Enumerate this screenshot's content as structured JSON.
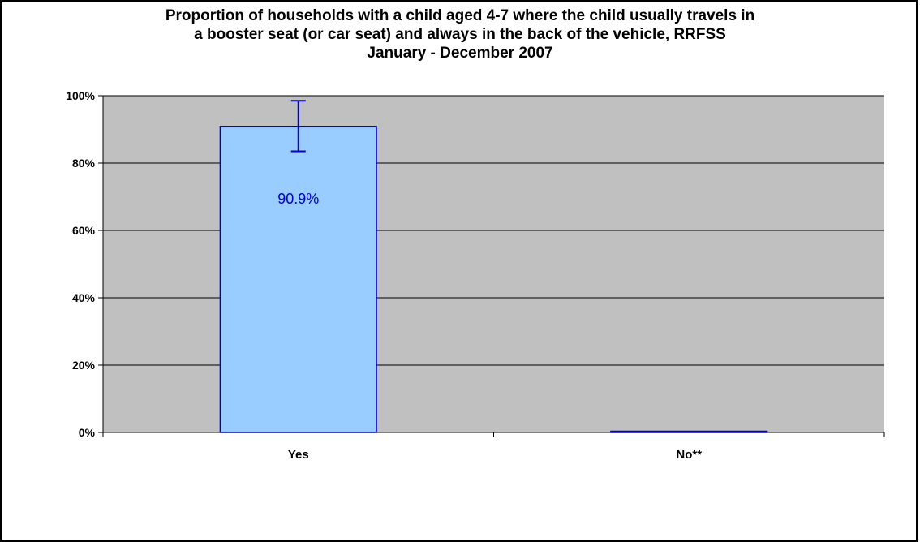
{
  "chart_data": {
    "type": "bar",
    "title_lines": [
      "Proportion of households with a child aged 4-7 where the child usually travels in",
      "a booster seat (or car seat) and always in the back of the vehicle, RRFSS",
      "January - December 2007"
    ],
    "categories": [
      "Yes",
      "No**"
    ],
    "values": [
      90.9,
      0
    ],
    "error_bars": [
      {
        "low": 83.5,
        "high": 98.5
      },
      null
    ],
    "data_labels": [
      "90.9%",
      ""
    ],
    "ylim": [
      0,
      100
    ],
    "yticks": [
      0,
      20,
      40,
      60,
      80,
      100
    ],
    "ytick_labels": [
      "0%",
      "20%",
      "40%",
      "60%",
      "80%",
      "100%"
    ],
    "xlabel": "",
    "ylabel": "",
    "grid": true,
    "colors": {
      "plot_bg": "#c0c0c0",
      "bar_fill": "#99ccff",
      "bar_stroke": "#0000cc",
      "error_bar": "#0000cc",
      "gridline": "#000000"
    }
  }
}
